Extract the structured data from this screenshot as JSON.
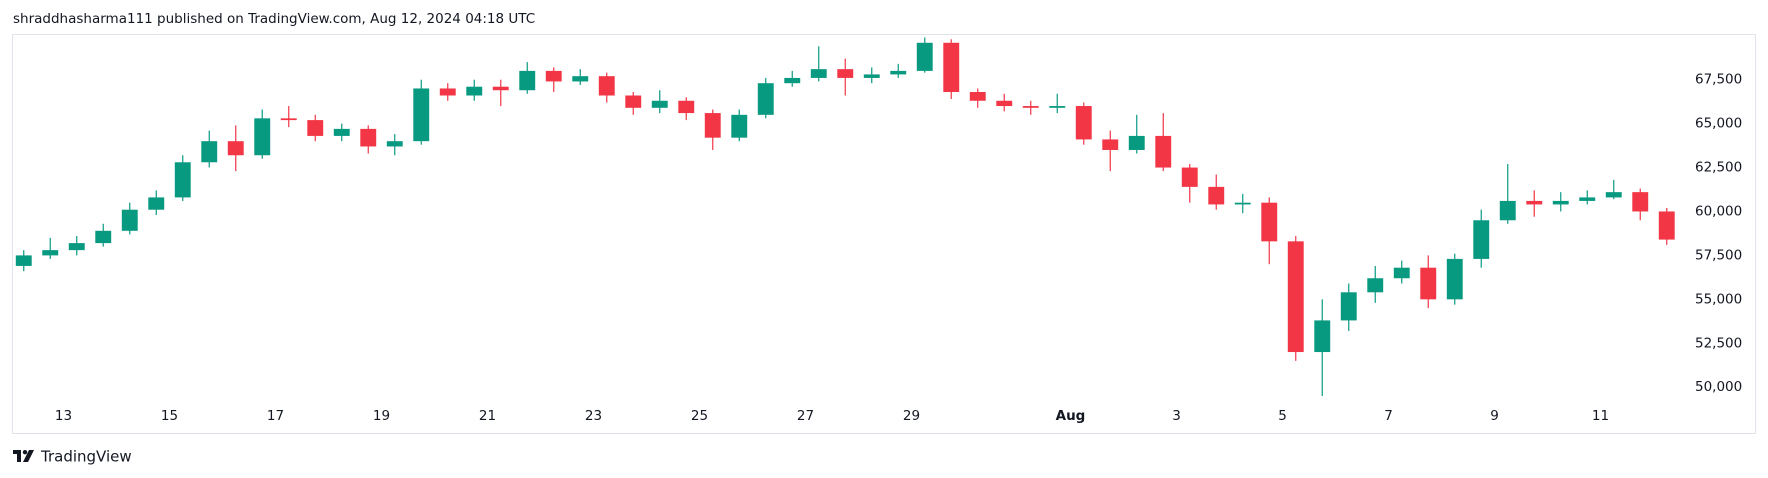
{
  "header": {
    "title": "shraddhasharma111 published on TradingView.com, Aug 12, 2024 04:18 UTC"
  },
  "footer": {
    "brand": "TradingView"
  },
  "chart_data": {
    "type": "candlestick",
    "categories": [
      null,
      null,
      "13",
      null,
      null,
      null,
      "15",
      null,
      null,
      null,
      "17",
      null,
      null,
      null,
      "19",
      null,
      null,
      null,
      "21",
      null,
      null,
      null,
      "23",
      null,
      null,
      null,
      "25",
      null,
      null,
      null,
      "27",
      null,
      null,
      null,
      "29",
      null,
      null,
      null,
      null,
      null,
      "Aug",
      null,
      null,
      null,
      "3",
      null,
      null,
      null,
      "5",
      null,
      null,
      null,
      "7",
      null,
      null,
      null,
      "9",
      null,
      null,
      null,
      "11",
      null,
      null
    ],
    "open": [
      56900,
      57500,
      57800,
      58200,
      58900,
      60100,
      60800,
      62800,
      64000,
      63200,
      65300,
      65200,
      64300,
      64700,
      63700,
      64000,
      67000,
      66600,
      67100,
      66900,
      68000,
      67400,
      67700,
      66600,
      65900,
      66300,
      65600,
      64200,
      65500,
      67300,
      67600,
      68100,
      67600,
      67800,
      68000,
      69600,
      66800,
      66300,
      66000,
      65900,
      66000,
      64100,
      63500,
      64300,
      62500,
      61400,
      60400,
      60500,
      58300,
      52000,
      53800,
      55400,
      56200,
      56800,
      55000,
      57300,
      59500,
      60600,
      60400,
      60600,
      60800,
      61100,
      60000
    ],
    "high": [
      57800,
      58500,
      58600,
      59300,
      60500,
      61200,
      63200,
      64600,
      64900,
      65800,
      66000,
      65500,
      65000,
      64900,
      64400,
      67500,
      67300,
      67500,
      67500,
      68500,
      68200,
      68100,
      67900,
      66800,
      66900,
      66500,
      65800,
      65800,
      67600,
      68000,
      69400,
      68700,
      68200,
      68400,
      69900,
      69800,
      67000,
      66700,
      66300,
      66700,
      66200,
      64600,
      65500,
      65600,
      62700,
      62100,
      61000,
      60800,
      58600,
      55000,
      55900,
      56900,
      57200,
      57500,
      57600,
      60100,
      62700,
      61200,
      61100,
      61200,
      61800,
      61300,
      60200
    ],
    "low": [
      56600,
      57300,
      57500,
      58000,
      58700,
      59800,
      60600,
      62500,
      62300,
      63000,
      64800,
      64000,
      64000,
      63300,
      63200,
      63800,
      66300,
      66300,
      66000,
      66700,
      66800,
      67200,
      66200,
      65500,
      65600,
      65200,
      63500,
      64000,
      65300,
      67100,
      67400,
      66600,
      67300,
      67600,
      67900,
      66400,
      65900,
      65700,
      65500,
      65600,
      63800,
      62300,
      63300,
      62300,
      60500,
      60100,
      59900,
      57000,
      51500,
      49500,
      53200,
      54800,
      55900,
      54500,
      54700,
      56800,
      59300,
      59700,
      60000,
      60400,
      60700,
      59500,
      58100
    ],
    "close": [
      57500,
      57800,
      58200,
      58900,
      60100,
      60800,
      62800,
      64000,
      63200,
      65300,
      65200,
      64300,
      64700,
      63700,
      64000,
      67000,
      66600,
      67100,
      66900,
      68000,
      67400,
      67700,
      66600,
      65900,
      66300,
      65600,
      64200,
      65500,
      67300,
      67600,
      68100,
      67600,
      67800,
      68000,
      69600,
      66800,
      66300,
      66000,
      65900,
      66000,
      64100,
      63500,
      64300,
      62500,
      61400,
      60400,
      60500,
      58300,
      52000,
      53800,
      55400,
      56200,
      56800,
      55000,
      57300,
      59500,
      60600,
      60400,
      60600,
      60800,
      61100,
      60000,
      58400
    ],
    "up_color": "#089981",
    "down_color": "#f23645",
    "ylim": [
      49100,
      70100
    ],
    "yticks": [
      {
        "value": 50000,
        "label": "50,000"
      },
      {
        "value": 52500,
        "label": "52,500"
      },
      {
        "value": 55000,
        "label": "55,000"
      },
      {
        "value": 57500,
        "label": "57,500"
      },
      {
        "value": 60000,
        "label": "60,000"
      },
      {
        "value": 62500,
        "label": "62,500"
      },
      {
        "value": 65000,
        "label": "65,000"
      },
      {
        "value": 67500,
        "label": "67,500"
      }
    ],
    "grid": false
  }
}
